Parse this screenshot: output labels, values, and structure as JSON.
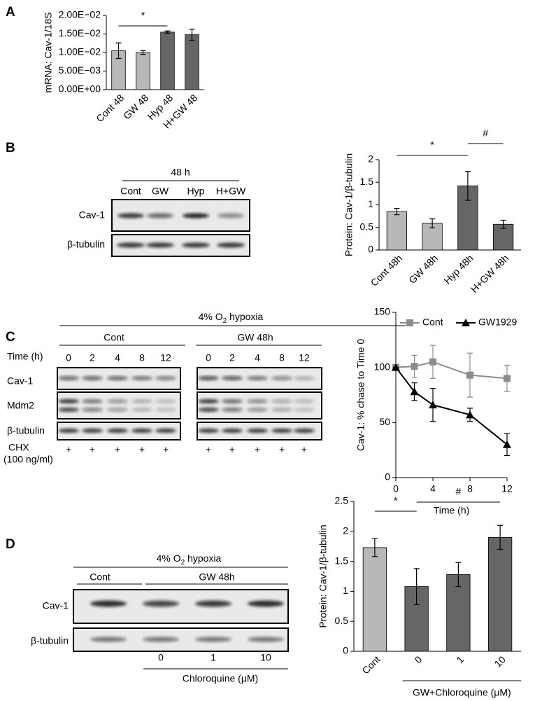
{
  "panel_labels": [
    "A",
    "B",
    "C",
    "D"
  ],
  "chart_data": [
    {
      "type": "bar",
      "ylabel": "mRNA: Cav-1/18S",
      "categories": [
        "Cont 48",
        "GW 48",
        "Hyp 48",
        "H+GW 48"
      ],
      "values": [
        0.0105,
        0.01,
        0.0155,
        0.0148
      ],
      "errors": [
        0.0021,
        0.0005,
        0.0003,
        0.0015
      ],
      "colors": [
        "#b8b8b8",
        "#b8b8b8",
        "#666666",
        "#666666"
      ],
      "ylim": [
        0,
        0.02
      ],
      "yticks": [
        {
          "value": 0,
          "label": "0.00E+00"
        },
        {
          "value": 0.005,
          "label": "5.00E−03"
        },
        {
          "value": 0.01,
          "label": "1.00E−02"
        },
        {
          "value": 0.015,
          "label": "1.50E−02"
        },
        {
          "value": 0.02,
          "label": "2.00E−02"
        }
      ],
      "annotations": [
        "*"
      ]
    },
    {
      "type": "bar",
      "ylabel": "Protein: Cav-1/β-tubulin",
      "categories": [
        "Cont 48h",
        "GW 48h",
        "Hyp 48h",
        "H+GW 48h"
      ],
      "values": [
        0.85,
        0.59,
        1.42,
        0.57
      ],
      "errors": [
        0.07,
        0.1,
        0.32,
        0.09
      ],
      "colors": [
        "#b8b8b8",
        "#b8b8b8",
        "#666666",
        "#666666"
      ],
      "ylim": [
        0,
        2
      ],
      "yticks": [
        0,
        0.5,
        1,
        1.5,
        2
      ],
      "annotations": [
        "*",
        "#"
      ]
    },
    {
      "type": "line",
      "xlabel": "Time (h)",
      "ylabel": "Cav-1: % chase to Time 0",
      "x": [
        0,
        2,
        4,
        8,
        12
      ],
      "series": [
        {
          "name": "Cont",
          "color": "#8c8c8c",
          "marker": "square",
          "values": [
            100,
            101,
            105,
            93,
            90
          ],
          "errors": [
            0,
            10,
            15,
            20,
            12
          ]
        },
        {
          "name": "GW1929",
          "color": "#000000",
          "marker": "triangle",
          "values": [
            100,
            78,
            66,
            57,
            30
          ],
          "errors": [
            0,
            8,
            15,
            6,
            10
          ]
        }
      ],
      "xlim": [
        0,
        12
      ],
      "xticks": [
        0,
        4,
        8,
        12
      ],
      "ylim": [
        0,
        150
      ],
      "yticks": [
        0,
        50,
        100,
        150
      ]
    },
    {
      "type": "bar",
      "ylabel": "Protein: Cav-1/β-tubulin",
      "group_label": "GW+Chloroquine (μM)",
      "categories": [
        "Cont",
        "0",
        "1",
        "10"
      ],
      "values": [
        1.73,
        1.08,
        1.28,
        1.9
      ],
      "errors": [
        0.15,
        0.3,
        0.2,
        0.2
      ],
      "colors": [
        "#b8b8b8",
        "#666666",
        "#666666",
        "#666666"
      ],
      "ylim": [
        0,
        2.5
      ],
      "yticks": [
        0,
        0.5,
        1,
        1.5,
        2,
        2.5
      ],
      "annotations": [
        "*",
        "#"
      ]
    }
  ],
  "blots": {
    "B": {
      "header": "48 h",
      "lanes": [
        "Cont",
        "GW",
        "Hyp",
        "H+GW"
      ],
      "rows": [
        "Cav-1",
        "β-tubulin"
      ]
    },
    "C": {
      "header": [
        "4% O",
        "2",
        " hypoxia"
      ],
      "groups": [
        "Cont",
        "GW 48h"
      ],
      "time_label": "Time (h)",
      "times": [
        [
          "0",
          "2",
          "4",
          "8",
          "12"
        ],
        [
          "0",
          "2",
          "4",
          "8",
          "12"
        ]
      ],
      "rows": [
        "Cav-1",
        "Mdm2",
        "β-tubulin"
      ],
      "chx": "CHX",
      "chx_dose": "(100 ng/ml)",
      "chx_marks": [
        "+",
        "+",
        "+",
        "+",
        "+",
        "+",
        "+",
        "+",
        "+",
        "+"
      ]
    },
    "D": {
      "header": [
        "4% O",
        "2",
        " hypoxia"
      ],
      "groups": [
        "Cont",
        "GW 48h"
      ],
      "rows": [
        "Cav-1",
        "β-tubulin"
      ],
      "doses": [
        "0",
        "1",
        "10"
      ],
      "dose_label": "Chloroquine (μM)"
    }
  }
}
